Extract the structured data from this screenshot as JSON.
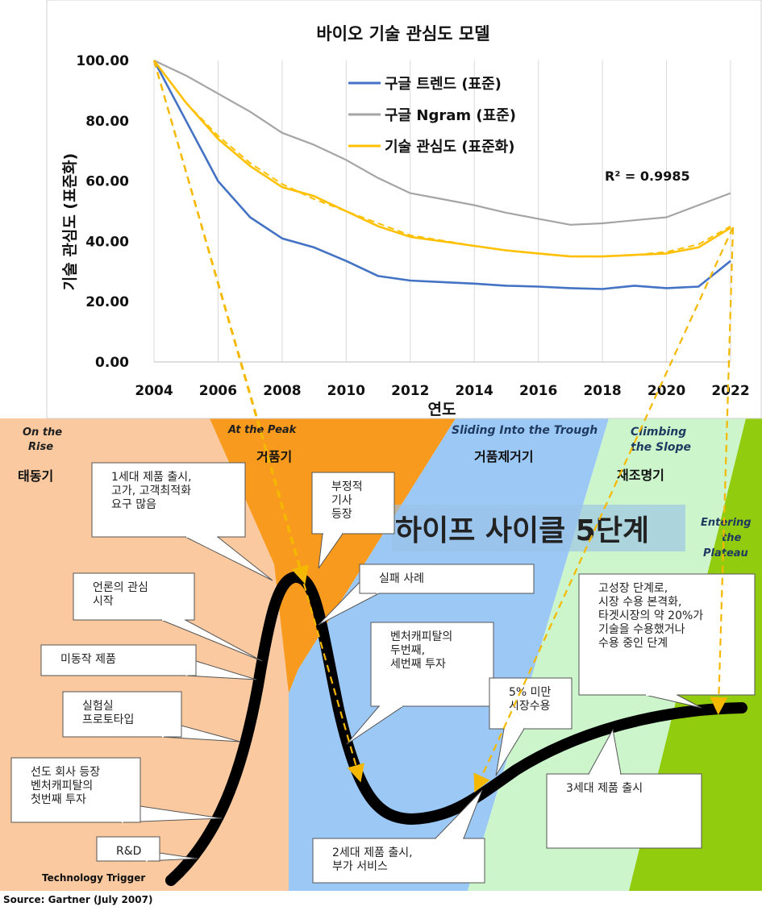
{
  "chart_data": {
    "type": "line",
    "title": "바이오 기술 관심도 모델",
    "xlabel": "연도",
    "ylabel": "기술 관심도 (표준화)",
    "xlim": [
      2004,
      2022
    ],
    "ylim": [
      0,
      100
    ],
    "x_ticks": [
      "2004",
      "2006",
      "2008",
      "2010",
      "2012",
      "2014",
      "2016",
      "2018",
      "2020",
      "2022"
    ],
    "y_ticks": [
      "0.00",
      "20.00",
      "40.00",
      "60.00",
      "80.00",
      "100.00"
    ],
    "grid": "vertical",
    "legend_position": "top-center",
    "annotation": "R² = 0.9985",
    "series": [
      {
        "name": "구글 트렌드 (표준)",
        "color": "#4472C4",
        "style": "solid",
        "x": [
          2004,
          2005,
          2006,
          2007,
          2008,
          2009,
          2010,
          2011,
          2012,
          2013,
          2014,
          2015,
          2016,
          2017,
          2018,
          2019,
          2020,
          2021,
          2022
        ],
        "y": [
          100,
          80,
          60,
          48,
          41,
          38,
          33.5,
          28.5,
          27,
          26.5,
          26,
          25.3,
          25,
          24.5,
          24.2,
          25.3,
          24.5,
          25,
          33.5
        ]
      },
      {
        "name": "구글 Ngram (표준)",
        "color": "#A5A5A5",
        "style": "solid",
        "x": [
          2004,
          2005,
          2006,
          2007,
          2008,
          2009,
          2010,
          2011,
          2012,
          2013,
          2014,
          2015,
          2016,
          2017,
          2018,
          2019,
          2020,
          2021,
          2022
        ],
        "y": [
          100,
          95,
          89,
          83,
          76,
          72,
          67,
          61,
          56,
          54,
          52,
          49.5,
          47.5,
          45.5,
          46,
          47,
          48,
          52,
          56
        ]
      },
      {
        "name": "기술 관심도 (표준화)",
        "color": "#FFC000",
        "style": "solid",
        "x": [
          2004,
          2005,
          2006,
          2007,
          2008,
          2009,
          2010,
          2011,
          2012,
          2013,
          2014,
          2015,
          2016,
          2017,
          2018,
          2019,
          2020,
          2021,
          2022
        ],
        "y": [
          100,
          86,
          74,
          65,
          58,
          55,
          50,
          45,
          41.5,
          40,
          38.5,
          37,
          36,
          35,
          35,
          35.5,
          36,
          38,
          44.5
        ]
      },
      {
        "name": "",
        "color": "#FFC000",
        "style": "dashed",
        "x": [
          2004,
          2005,
          2006,
          2007,
          2008,
          2009,
          2010,
          2011,
          2012,
          2013,
          2014,
          2015,
          2016,
          2017,
          2018,
          2019,
          2020,
          2021,
          2022
        ],
        "y": [
          100,
          86,
          75,
          66,
          59,
          54,
          50,
          46,
          42,
          40.3,
          38.5,
          37,
          36,
          35,
          35,
          35.5,
          36.5,
          39,
          45
        ]
      }
    ]
  },
  "hype_cycle": {
    "title": "하이프 사이클 5단계",
    "source": "Source: Gartner (July 2007)",
    "trigger_label": "Technology Trigger",
    "phases": [
      {
        "en": "On the\nRise",
        "ko": "태동기",
        "color": "#FAC9A0"
      },
      {
        "en": "At the Peak",
        "ko": "거품기",
        "color": "#F79A1E"
      },
      {
        "en": "Sliding Into the Trough",
        "ko": "거품제거기",
        "color": "#9CC8F6"
      },
      {
        "en": "Climbing\nthe Slope",
        "ko": "재조명기",
        "color": "#CCF5CC"
      },
      {
        "en": "Entering\nthe\nPlateau",
        "ko": "",
        "color": "#92CC0E"
      }
    ],
    "callouts": [
      "1세대 제품 출시,\n고가, 고객최적화\n요구 많음",
      "부정적\n기사\n등장",
      "실패 사례",
      "언론의 관심\n시작",
      "미동작 제품",
      "실험실\n프로토타입",
      "선도 회사 등장\n벤처캐피탈의\n첫번째 투자",
      "R&D",
      "벤처캐피탈의\n두번째,\n세번째 투자",
      "5% 미만\n시장수용",
      "고성장 단계로,\n시장 수용 본격화,\n타겟시장의 약 20%가\n기술을 수용했거나\n수용 중인 단계",
      "2세대 제품 출시,\n부가 서비스",
      "3세대 제품 출시"
    ]
  }
}
